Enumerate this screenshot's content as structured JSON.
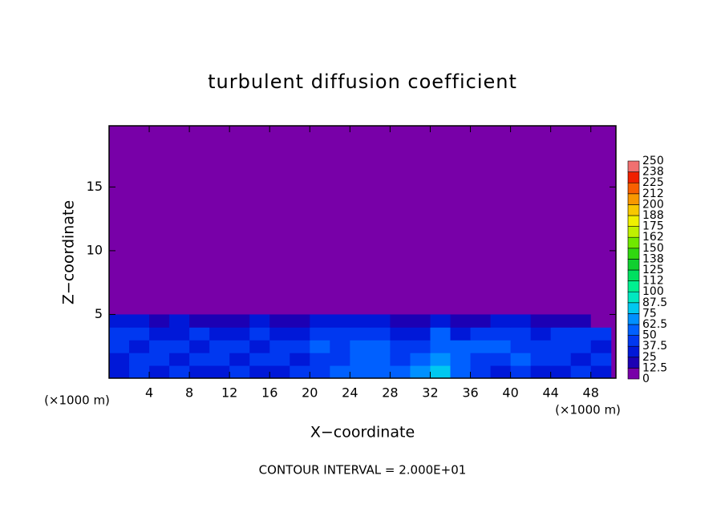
{
  "chart_data": {
    "type": "contour",
    "title": "turbulent diffusion coefficient",
    "xlabel": "X−coordinate",
    "ylabel": "Z−coordinate",
    "x_unit_label": "(×1000 m)",
    "footnote": "CONTOUR INTERVAL = 2.000E+01",
    "xlim": [
      0,
      50.5
    ],
    "ylim": [
      0,
      19.8
    ],
    "xticks": [
      4,
      8,
      12,
      16,
      20,
      24,
      28,
      32,
      36,
      40,
      44,
      48
    ],
    "yticks": [
      5,
      10,
      15
    ],
    "x": [
      1,
      3,
      5,
      7,
      9,
      11,
      13,
      15,
      17,
      19,
      21,
      23,
      25,
      27,
      29,
      31,
      33,
      35,
      37,
      39,
      41,
      43,
      45,
      47,
      49
    ],
    "y": [
      0.5,
      1.5,
      2.5,
      3.5,
      4.5
    ],
    "values": [
      [
        30,
        40,
        35,
        40,
        30,
        35,
        40,
        30,
        35,
        40,
        45,
        50,
        60,
        55,
        50,
        70,
        75,
        60,
        40,
        35,
        40,
        35,
        30,
        40,
        35
      ],
      [
        35,
        45,
        40,
        30,
        40,
        45,
        35,
        40,
        45,
        35,
        40,
        45,
        55,
        60,
        45,
        60,
        70,
        55,
        45,
        40,
        50,
        45,
        40,
        35,
        40
      ],
      [
        40,
        35,
        45,
        40,
        35,
        40,
        45,
        35,
        40,
        45,
        50,
        40,
        50,
        55,
        40,
        45,
        60,
        50,
        55,
        50,
        45,
        40,
        45,
        40,
        35
      ],
      [
        45,
        40,
        30,
        35,
        40,
        30,
        35,
        40,
        30,
        35,
        45,
        40,
        45,
        40,
        35,
        35,
        55,
        35,
        45,
        40,
        40,
        35,
        40,
        45,
        40
      ],
      [
        25,
        30,
        20,
        25,
        20,
        15,
        20,
        25,
        20,
        20,
        30,
        30,
        25,
        25,
        20,
        20,
        35,
        15,
        20,
        25,
        30,
        20,
        20,
        15,
        10
      ]
    ],
    "colorbar": {
      "levels": [
        0,
        12.5,
        25,
        37.5,
        50,
        62.5,
        75,
        87.5,
        100,
        {
          "value": 112.5,
          "label": "112"
        },
        125,
        {
          "value": 137.5,
          "label": "138"
        },
        150,
        {
          "value": 162.5,
          "label": "162"
        },
        175,
        {
          "value": 187.5,
          "label": "188"
        },
        200,
        {
          "value": 212.5,
          "label": "212"
        },
        225,
        {
          "value": 237.5,
          "label": "238"
        },
        250
      ],
      "colors": [
        "#7800a8",
        "#1c00b4",
        "#0018d8",
        "#0038f0",
        "#0060ff",
        "#0090ff",
        "#00c8f0",
        "#00e8c0",
        "#00f090",
        "#00e060",
        "#10d030",
        "#30d810",
        "#70e800",
        "#c0f000",
        "#f0f000",
        "#f8c800",
        "#f89800",
        "#f86000",
        "#f02000",
        "#f07070"
      ]
    }
  }
}
